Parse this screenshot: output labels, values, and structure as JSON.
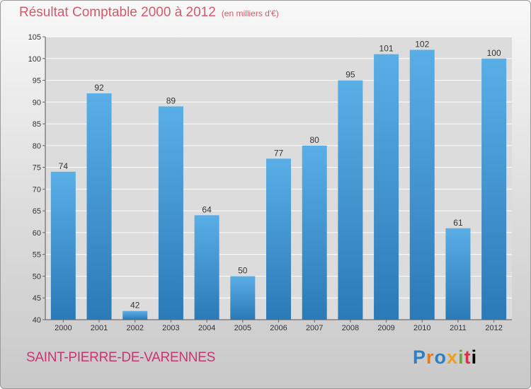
{
  "title": "Résultat Comptable 2000 à 2012",
  "unit": "(en milliers d'€)",
  "commune": "SAINT-PIERRE-DE-VARENNES",
  "logo": [
    "P",
    "r",
    "o",
    "x",
    "i",
    "t",
    "i"
  ],
  "colors": {
    "bar_light": "#5aaee6",
    "bar_dark": "#2b7ab8",
    "title": "#d35a6a",
    "commune": "#c8366e"
  },
  "chart_data": {
    "type": "bar",
    "categories": [
      "2000",
      "2001",
      "2002",
      "2003",
      "2004",
      "2005",
      "2006",
      "2007",
      "2008",
      "2009",
      "2010",
      "2011",
      "2012"
    ],
    "values": [
      74,
      92,
      42,
      89,
      64,
      50,
      77,
      80,
      95,
      101,
      102,
      61,
      100
    ],
    "ylim": [
      40,
      105
    ],
    "yticks": [
      40,
      45,
      50,
      55,
      60,
      65,
      70,
      75,
      80,
      85,
      90,
      95,
      100,
      105
    ],
    "grid": true,
    "xlabel": "",
    "ylabel": ""
  }
}
